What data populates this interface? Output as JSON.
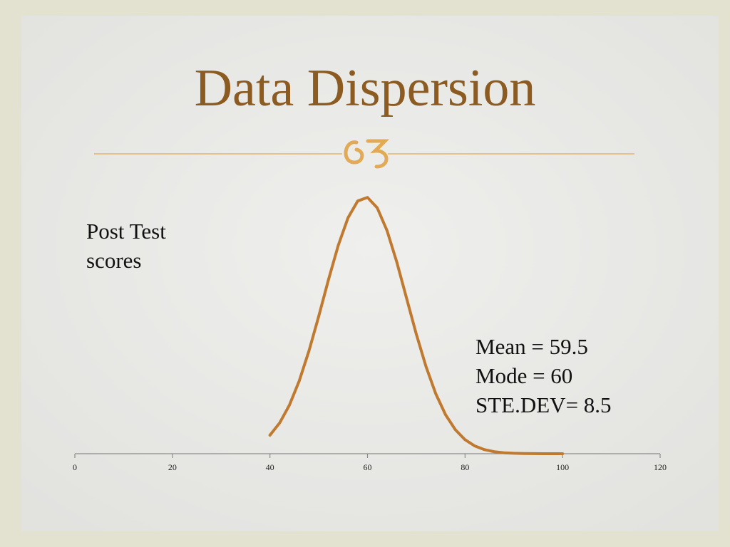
{
  "chart_data": {
    "type": "line",
    "title": "Data Dispersion",
    "annotations": [
      "Post Test",
      "scores",
      "Mean = 59.5",
      "Mode = 60",
      "STE.DEV= 8.5"
    ],
    "x": [
      40,
      42,
      44,
      46,
      48,
      50,
      52,
      54,
      56,
      58,
      60,
      62,
      64,
      66,
      68,
      70,
      72,
      74,
      76,
      78,
      80,
      82,
      84,
      86,
      88,
      90,
      92,
      94,
      96,
      98,
      100
    ],
    "series": [
      {
        "color": "#c07a2f",
        "values": [
          0.00338,
          0.00564,
          0.0089,
          0.0133,
          0.0188,
          0.02512,
          0.03181,
          0.03807,
          0.04311,
          0.0462,
          0.04685,
          0.04494,
          0.0408,
          0.03505,
          0.02846,
          0.02188,
          0.01592,
          0.01095,
          0.00713,
          0.0044,
          0.00256,
          0.00141,
          0.00074,
          0.00036,
          0.00017,
          8e-05,
          3e-05,
          1e-05,
          0,
          0,
          0
        ]
      }
    ],
    "xlim": [
      0,
      120
    ],
    "xticks": [
      0,
      20,
      40,
      60,
      80,
      100,
      120
    ],
    "ylim": [
      0,
      0.05
    ]
  }
}
